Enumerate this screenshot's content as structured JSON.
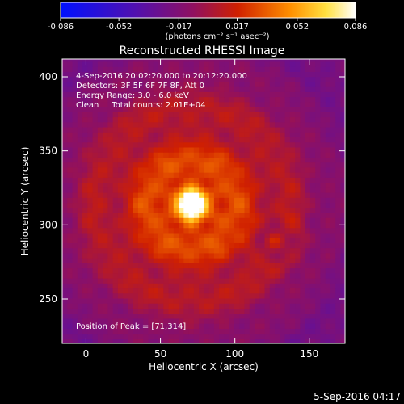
{
  "chart_data": {
    "type": "heatmap",
    "title": "Reconstructed RHESSI Image",
    "xlabel": "Heliocentric X (arcsec)",
    "ylabel": "Heliocentric Y (arcsec)",
    "xlim": [
      -16,
      174
    ],
    "ylim": [
      220,
      412
    ],
    "xticks": [
      0,
      50,
      100,
      150
    ],
    "yticks": [
      250,
      300,
      350,
      400
    ],
    "colorbar": {
      "ticks": [
        "-0.086",
        "-0.052",
        "-0.017",
        "0.017",
        "0.052",
        "0.086"
      ],
      "unit": "(photons cm⁻² s⁻¹ asec⁻²)",
      "range": [
        -0.086,
        0.086
      ],
      "colormap": "blue-purple-red-yellow-white"
    },
    "annotations": [
      "4-Sep-2016 20:02:20.000 to 20:12:20.000",
      "Detectors: 3F 5F 6F 7F 8F, Att 0",
      "Energy Range: 3.0 - 6.0 keV",
      "Clean     Total counts: 2.01E+04"
    ],
    "peak_label": "Position of Peak = [71,314]",
    "peak": {
      "x": 71,
      "y": 314,
      "value": 0.086
    },
    "secondary_source": {
      "x": 126,
      "y": 289
    },
    "timestamp": "5-Sep-2016 04:17"
  }
}
